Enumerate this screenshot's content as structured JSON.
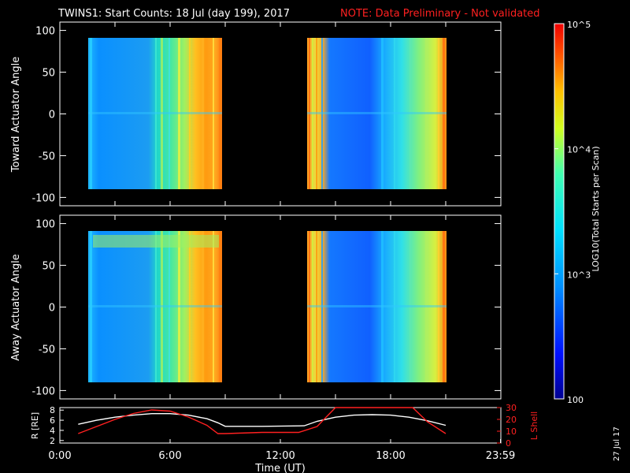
{
  "title": {
    "main": "TWINS1: Start Counts: 18 Jul (day 199), 2017",
    "note": "NOTE: Data Preliminary - Not validated",
    "note_color": "#ff2020"
  },
  "footer": {
    "stamp": "27 Jul 17"
  },
  "chart_data": [
    {
      "type": "heatmap",
      "panel": "top",
      "ylabel": "Toward Actuator Angle",
      "ylim": [
        -110,
        110
      ],
      "yticks": [
        100,
        50,
        0,
        -50,
        -100
      ],
      "xlim": [
        0,
        24
      ],
      "data_blocks_hours": [
        [
          1.0,
          8.6
        ],
        [
          13.3,
          21.0
        ]
      ],
      "angle_range": [
        -90,
        90
      ]
    },
    {
      "type": "heatmap",
      "panel": "middle",
      "ylabel": "Away Actuator Angle",
      "ylim": [
        -110,
        110
      ],
      "yticks": [
        100,
        50,
        0,
        -50,
        -100
      ],
      "xlim": [
        0,
        24
      ],
      "data_blocks_hours": [
        [
          1.0,
          8.6
        ],
        [
          13.3,
          21.0
        ]
      ],
      "angle_range": [
        -90,
        90
      ]
    },
    {
      "type": "line",
      "panel": "bottom",
      "xlabel": "Time (UT)",
      "xticks": [
        "0:00",
        "6:00",
        "12:00",
        "18:00",
        "23:59"
      ],
      "xlim": [
        0,
        24
      ],
      "left_axis": {
        "label": "R [RE]",
        "ylim": [
          1.5,
          8.5
        ],
        "ticks": [
          "8",
          "6",
          "4",
          "2"
        ]
      },
      "right_axis": {
        "label": "L Shell",
        "ylim": [
          0,
          30
        ],
        "ticks": [
          "30",
          "20",
          "10",
          "0"
        ],
        "color": "#ff2020"
      },
      "series": [
        {
          "axis": "left",
          "color": "#ffffff",
          "x": [
            1.0,
            2.0,
            3.0,
            4.0,
            5.0,
            6.0,
            7.0,
            8.0,
            8.6,
            9.0,
            11.0,
            13.3,
            14.0,
            15.0,
            16.0,
            17.0,
            18.0,
            19.0,
            20.0,
            21.0
          ],
          "y": [
            5.2,
            6.0,
            6.6,
            7.0,
            7.3,
            7.3,
            7.0,
            6.3,
            5.5,
            4.8,
            4.8,
            4.9,
            5.8,
            6.6,
            7.0,
            7.1,
            7.0,
            6.6,
            5.9,
            5.0
          ]
        },
        {
          "axis": "right",
          "color": "#ff2020",
          "x": [
            1.0,
            2.0,
            3.0,
            4.0,
            5.0,
            6.0,
            7.0,
            8.0,
            8.6,
            9.0,
            11.0,
            13.0,
            14.0,
            14.5,
            15.0,
            19.2,
            20.0,
            21.0
          ],
          "y": [
            8,
            14,
            20,
            25,
            28,
            27,
            22,
            15,
            8,
            8,
            9,
            9,
            14,
            22,
            30,
            30,
            18,
            8
          ]
        }
      ]
    },
    {
      "type": "heatmap",
      "panel": "colorbar",
      "label": "LOG10(Total Starts per Scan)",
      "scale": "log",
      "range": [
        100,
        100000
      ],
      "ticks": [
        "10^5",
        "10^4",
        "10^3",
        "100"
      ]
    }
  ]
}
